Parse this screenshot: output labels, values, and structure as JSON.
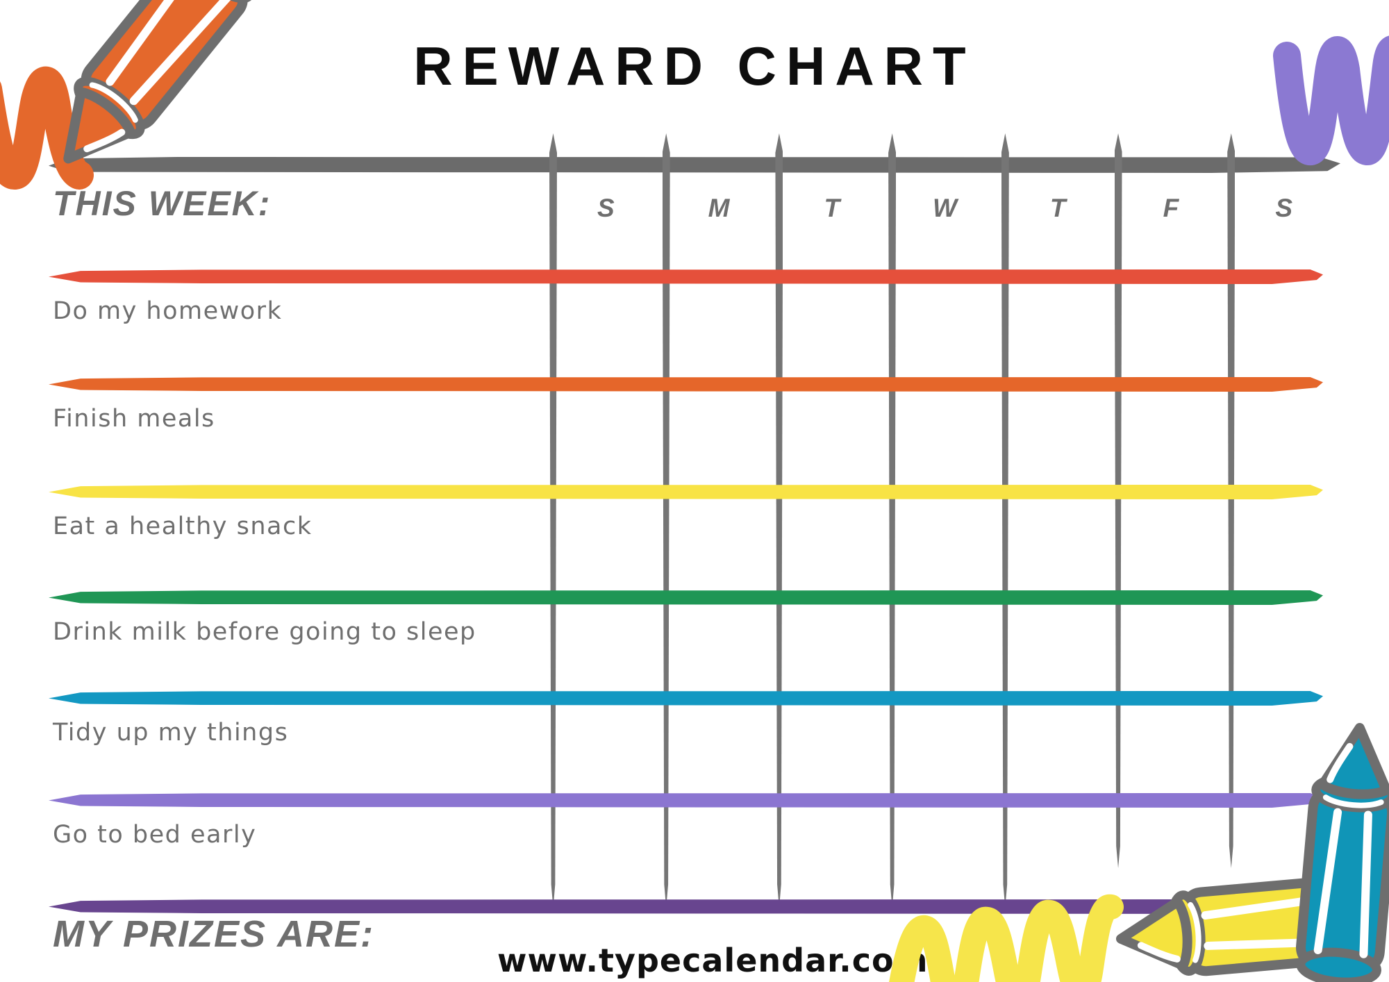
{
  "title": "REWARD CHART",
  "header": {
    "week_label": "THIS WEEK:",
    "days": [
      "S",
      "M",
      "T",
      "W",
      "T",
      "F",
      "S"
    ]
  },
  "tasks": [
    {
      "label": "Do my homework",
      "line_color": "#e5503b"
    },
    {
      "label": "Finish meals",
      "line_color": "#e5662a"
    },
    {
      "label": "Eat a healthy snack",
      "line_color": "#f8e345"
    },
    {
      "label": "Drink milk before going to sleep",
      "line_color": "#1f9655"
    },
    {
      "label": "Tidy up my things",
      "line_color": "#1398c2"
    },
    {
      "label": "Go to bed early",
      "line_color": "#8b75d1"
    }
  ],
  "bottom_line_color": "#68458f",
  "footer": {
    "prizes_label": "MY PRIZES ARE:",
    "website": "www.typecalendar.com"
  },
  "theme": {
    "grid_line_color": "#757575",
    "header_line_color": "#6b6b6b",
    "text_color": "#6e6e6e",
    "title_color": "#0e0e0e"
  },
  "decorations": {
    "orange_crayon_color": "#e4682c",
    "blue_crayon_color": "#1095b7",
    "yellow_crayon_color": "#f5e33e",
    "outline_color": "#6e6e6e",
    "orange_squiggle_color": "#e4682c",
    "purple_squiggle_color": "#8b79d2",
    "yellow_squiggle_color": "#f6e54b"
  }
}
